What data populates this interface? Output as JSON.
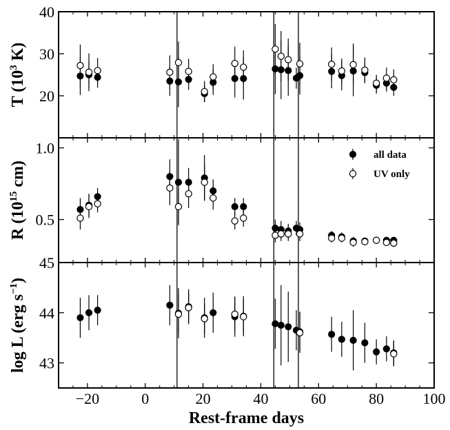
{
  "chart_data": {
    "type": "scatter",
    "xlabel": "Rest-frame days",
    "xlim": [
      -30,
      100
    ],
    "xticks": [
      -20,
      0,
      20,
      40,
      60,
      80,
      100
    ],
    "vertical_lines_x": [
      11,
      44.5,
      53
    ],
    "legend": {
      "placement": "top-right (middle panel)",
      "entries": [
        "all data",
        "UV only"
      ]
    },
    "panels": [
      {
        "id": "T",
        "ylabel_html": "T (10<tspan dy='-9' font-size='15'>3</tspan><tspan dy='9'> K)</tspan>",
        "ylim": [
          10,
          40
        ],
        "yticks": [
          20,
          30,
          40
        ],
        "series": [
          {
            "name": "all data",
            "marker": "filled",
            "points": [
              {
                "x": -22.5,
                "y": 24.7,
                "yerr": 4.5
              },
              {
                "x": -19.5,
                "y": 25.0,
                "yerr": 3.2
              },
              {
                "x": -16.5,
                "y": 24.4,
                "yerr": 2.5
              },
              {
                "x": 8.5,
                "y": 23.5,
                "yerr": 3.5
              },
              {
                "x": 11.5,
                "y": 23.3,
                "yerr": 6.0
              },
              {
                "x": 15,
                "y": 23.9,
                "yerr": 2.5
              },
              {
                "x": 20.5,
                "y": 20.5,
                "yerr": 2.0
              },
              {
                "x": 23.5,
                "y": 23.2,
                "yerr": 3.0
              },
              {
                "x": 31,
                "y": 24.1,
                "yerr": 4.5
              },
              {
                "x": 34,
                "y": 24.1,
                "yerr": 5.0
              },
              {
                "x": 45,
                "y": 26.4,
                "yerr": 6.0
              },
              {
                "x": 47,
                "y": 26.2,
                "yerr": 7.0
              },
              {
                "x": 49.5,
                "y": 26.0,
                "yerr": 6.0
              },
              {
                "x": 52.3,
                "y": 24.2,
                "yerr": 2.5
              },
              {
                "x": 53.5,
                "y": 24.8,
                "yerr": 4.5
              },
              {
                "x": 64.5,
                "y": 25.8,
                "yerr": 4.0
              },
              {
                "x": 68,
                "y": 24.8,
                "yerr": 3.5
              },
              {
                "x": 72,
                "y": 25.9,
                "yerr": 6.0
              },
              {
                "x": 76,
                "y": 25.5,
                "yerr": 2.5
              },
              {
                "x": 80,
                "y": 22.5,
                "yerr": 2.0
              },
              {
                "x": 83.5,
                "y": 23.0,
                "yerr": 2.0
              },
              {
                "x": 86,
                "y": 22.0,
                "yerr": 2.0
              }
            ]
          },
          {
            "name": "UV only",
            "marker": "open",
            "points": [
              {
                "x": -22.5,
                "y": 27.2,
                "yerr": 5.0
              },
              {
                "x": -19.5,
                "y": 25.6,
                "yerr": 4.5
              },
              {
                "x": -16.5,
                "y": 26.0,
                "yerr": 3.0
              },
              {
                "x": 8.5,
                "y": 25.6,
                "yerr": 4.0
              },
              {
                "x": 11.5,
                "y": 27.9,
                "yerr": 5.0
              },
              {
                "x": 15,
                "y": 25.8,
                "yerr": 3.0
              },
              {
                "x": 20.5,
                "y": 21.0,
                "yerr": 2.5
              },
              {
                "x": 23.5,
                "y": 24.5,
                "yerr": 3.0
              },
              {
                "x": 31,
                "y": 27.7,
                "yerr": 4.0
              },
              {
                "x": 34,
                "y": 26.8,
                "yerr": 4.0
              },
              {
                "x": 45,
                "y": 31.1,
                "yerr": 6.0
              },
              {
                "x": 47,
                "y": 29.4,
                "yerr": 6.0
              },
              {
                "x": 49.5,
                "y": 28.6,
                "yerr": 5.0
              },
              {
                "x": 53.5,
                "y": 27.6,
                "yerr": 5.0
              },
              {
                "x": 64.5,
                "y": 27.5,
                "yerr": 4.0
              },
              {
                "x": 68,
                "y": 25.9,
                "yerr": 3.0
              },
              {
                "x": 72,
                "y": 27.4,
                "yerr": 5.0
              },
              {
                "x": 76,
                "y": 26.1,
                "yerr": 3.0
              },
              {
                "x": 80,
                "y": 23.0,
                "yerr": 2.0
              },
              {
                "x": 83.5,
                "y": 24.2,
                "yerr": 2.5
              },
              {
                "x": 86,
                "y": 23.8,
                "yerr": 2.5
              }
            ]
          }
        ]
      },
      {
        "id": "R",
        "ylabel_html": "R (10<tspan dy='-9' font-size='15'>15</tspan><tspan dy='9'> cm)</tspan>",
        "ylim": [
          0.2,
          1.07
        ],
        "yticks": [
          0.5,
          1.0
        ],
        "yticklabels": [
          "0.5",
          "1.0"
        ],
        "series": [
          {
            "name": "all data",
            "marker": "filled",
            "points": [
              {
                "x": -22.5,
                "y": 0.57,
                "yerr": 0.08
              },
              {
                "x": -19.5,
                "y": 0.6,
                "yerr": 0.08
              },
              {
                "x": -16.5,
                "y": 0.66,
                "yerr": 0.06
              },
              {
                "x": 8.5,
                "y": 0.8,
                "yerr": 0.12
              },
              {
                "x": 11.5,
                "y": 0.76,
                "yerr": 0.3
              },
              {
                "x": 15,
                "y": 0.76,
                "yerr": 0.1
              },
              {
                "x": 20.5,
                "y": 0.79,
                "yerr": 0.16
              },
              {
                "x": 23.5,
                "y": 0.7,
                "yerr": 0.08
              },
              {
                "x": 31,
                "y": 0.59,
                "yerr": 0.06
              },
              {
                "x": 34,
                "y": 0.59,
                "yerr": 0.06
              },
              {
                "x": 45,
                "y": 0.44,
                "yerr": 0.06
              },
              {
                "x": 47,
                "y": 0.43,
                "yerr": 0.06
              },
              {
                "x": 49.5,
                "y": 0.42,
                "yerr": 0.05
              },
              {
                "x": 52.3,
                "y": 0.44,
                "yerr": 0.05
              },
              {
                "x": 53.5,
                "y": 0.43,
                "yerr": 0.05
              },
              {
                "x": 64.5,
                "y": 0.39,
                "yerr": 0.03
              },
              {
                "x": 68,
                "y": 0.38,
                "yerr": 0.03
              },
              {
                "x": 72,
                "y": 0.35,
                "yerr": 0.03
              },
              {
                "x": 76,
                "y": 0.35,
                "yerr": 0.025
              },
              {
                "x": 80,
                "y": 0.355,
                "yerr": 0.02
              },
              {
                "x": 83.5,
                "y": 0.355,
                "yerr": 0.02
              },
              {
                "x": 86,
                "y": 0.355,
                "yerr": 0.02
              }
            ]
          },
          {
            "name": "UV only",
            "marker": "open",
            "points": [
              {
                "x": -22.5,
                "y": 0.51,
                "yerr": 0.08
              },
              {
                "x": -19.5,
                "y": 0.59,
                "yerr": 0.08
              },
              {
                "x": -16.5,
                "y": 0.61,
                "yerr": 0.06
              },
              {
                "x": 8.5,
                "y": 0.72,
                "yerr": 0.12
              },
              {
                "x": 11.5,
                "y": 0.59,
                "yerr": 0.12
              },
              {
                "x": 15,
                "y": 0.68,
                "yerr": 0.1
              },
              {
                "x": 20.5,
                "y": 0.76,
                "yerr": 0.12
              },
              {
                "x": 23.5,
                "y": 0.65,
                "yerr": 0.08
              },
              {
                "x": 31,
                "y": 0.49,
                "yerr": 0.06
              },
              {
                "x": 34,
                "y": 0.51,
                "yerr": 0.06
              },
              {
                "x": 45,
                "y": 0.39,
                "yerr": 0.05
              },
              {
                "x": 47,
                "y": 0.4,
                "yerr": 0.05
              },
              {
                "x": 49.5,
                "y": 0.4,
                "yerr": 0.05
              },
              {
                "x": 53.5,
                "y": 0.4,
                "yerr": 0.05
              },
              {
                "x": 64.5,
                "y": 0.37,
                "yerr": 0.03
              },
              {
                "x": 68,
                "y": 0.37,
                "yerr": 0.03
              },
              {
                "x": 72,
                "y": 0.34,
                "yerr": 0.03
              },
              {
                "x": 76,
                "y": 0.345,
                "yerr": 0.025
              },
              {
                "x": 80,
                "y": 0.355,
                "yerr": 0.02
              },
              {
                "x": 83.5,
                "y": 0.34,
                "yerr": 0.02
              },
              {
                "x": 86,
                "y": 0.335,
                "yerr": 0.02
              }
            ]
          }
        ],
        "legend_items": [
          {
            "label": "all data",
            "marker": "filled"
          },
          {
            "label": "UV only",
            "marker": "open"
          }
        ]
      },
      {
        "id": "L",
        "ylabel_html": "log L (erg s<tspan dy='-9' font-size='15'>−1</tspan><tspan dy='9'>)</tspan>",
        "ylim": [
          42.5,
          45.0
        ],
        "yticks": [
          43,
          44,
          45
        ],
        "series": [
          {
            "name": "all data",
            "marker": "filled",
            "points": [
              {
                "x": -22.5,
                "y": 43.9,
                "yerr": 0.4
              },
              {
                "x": -19.5,
                "y": 44.0,
                "yerr": 0.35
              },
              {
                "x": -16.5,
                "y": 44.05,
                "yerr": 0.3
              },
              {
                "x": 8.5,
                "y": 44.15,
                "yerr": 0.4
              },
              {
                "x": 11.5,
                "y": 43.99,
                "yerr": 0.5
              },
              {
                "x": 15,
                "y": 44.12,
                "yerr": 0.35
              },
              {
                "x": 20.5,
                "y": 43.9,
                "yerr": 0.4
              },
              {
                "x": 23.5,
                "y": 44.0,
                "yerr": 0.4
              },
              {
                "x": 31,
                "y": 43.92,
                "yerr": 0.4
              },
              {
                "x": 34,
                "y": 43.93,
                "yerr": 0.4
              },
              {
                "x": 45,
                "y": 43.78,
                "yerr": 0.5
              },
              {
                "x": 47,
                "y": 43.75,
                "yerr": 0.8
              },
              {
                "x": 49.5,
                "y": 43.72,
                "yerr": 0.7
              },
              {
                "x": 52.3,
                "y": 43.65,
                "yerr": 0.4
              },
              {
                "x": 53.5,
                "y": 43.62,
                "yerr": 0.4
              },
              {
                "x": 64.5,
                "y": 43.57,
                "yerr": 0.35
              },
              {
                "x": 68,
                "y": 43.47,
                "yerr": 0.35
              },
              {
                "x": 72,
                "y": 43.45,
                "yerr": 0.6
              },
              {
                "x": 76,
                "y": 43.4,
                "yerr": 0.4
              },
              {
                "x": 80,
                "y": 43.22,
                "yerr": 0.25
              },
              {
                "x": 83.5,
                "y": 43.28,
                "yerr": 0.25
              },
              {
                "x": 86,
                "y": 43.2,
                "yerr": 0.25
              }
            ]
          },
          {
            "name": "UV only",
            "marker": "open",
            "points": [
              {
                "x": 11.5,
                "y": 43.97,
                "yerr": 0.4
              },
              {
                "x": 15,
                "y": 44.1,
                "yerr": 0.3
              },
              {
                "x": 20.5,
                "y": 43.88,
                "yerr": 0.3
              },
              {
                "x": 31,
                "y": 43.97,
                "yerr": 0.35
              },
              {
                "x": 34,
                "y": 43.92,
                "yerr": 0.35
              },
              {
                "x": 53.5,
                "y": 43.6,
                "yerr": 0.4
              },
              {
                "x": 86,
                "y": 43.18,
                "yerr": 0.25
              }
            ]
          }
        ]
      }
    ]
  }
}
